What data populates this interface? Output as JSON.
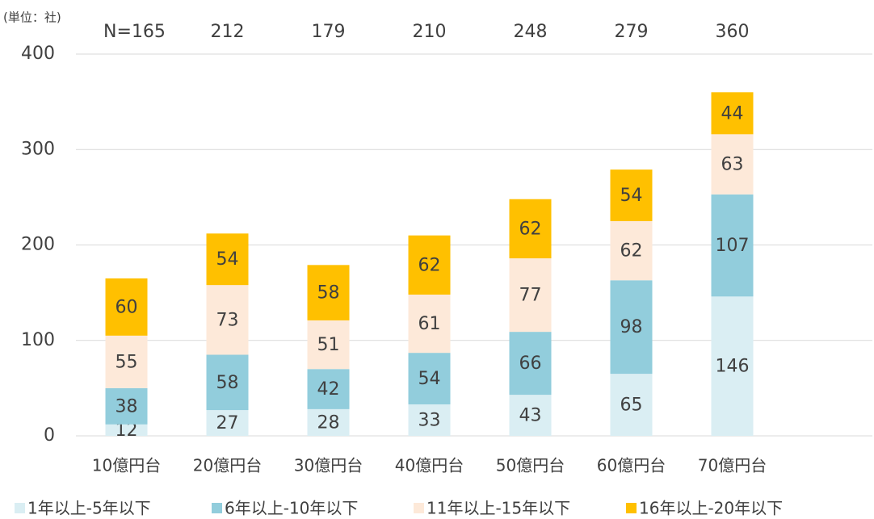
{
  "chart_data": {
    "type": "stacked-bar",
    "unit_label": "(単位：社)",
    "categories": [
      "10億円台",
      "20億円台",
      "30億円台",
      "40億円台",
      "50億円台",
      "60億円台",
      "70億円台"
    ],
    "total_labels": [
      "N=165",
      "212",
      "179",
      "210",
      "248",
      "279",
      "360"
    ],
    "series": [
      {
        "name": "1年以上-5年以下",
        "color": "#daeef3",
        "values": [
          12,
          27,
          28,
          33,
          43,
          65,
          146
        ]
      },
      {
        "name": "6年以上-10年以下",
        "color": "#92cddc",
        "values": [
          38,
          58,
          42,
          54,
          66,
          98,
          107
        ]
      },
      {
        "name": "11年以上-15年以下",
        "color": "#fde9d9",
        "values": [
          55,
          73,
          51,
          61,
          77,
          62,
          63
        ]
      },
      {
        "name": "16年以上-20年以下",
        "color": "#ffc000",
        "values": [
          60,
          54,
          58,
          62,
          62,
          54,
          44
        ]
      }
    ],
    "ylim": [
      0,
      400
    ],
    "yticks": [
      0,
      100,
      200,
      300,
      400
    ],
    "grid": true,
    "legend": "bottom"
  }
}
